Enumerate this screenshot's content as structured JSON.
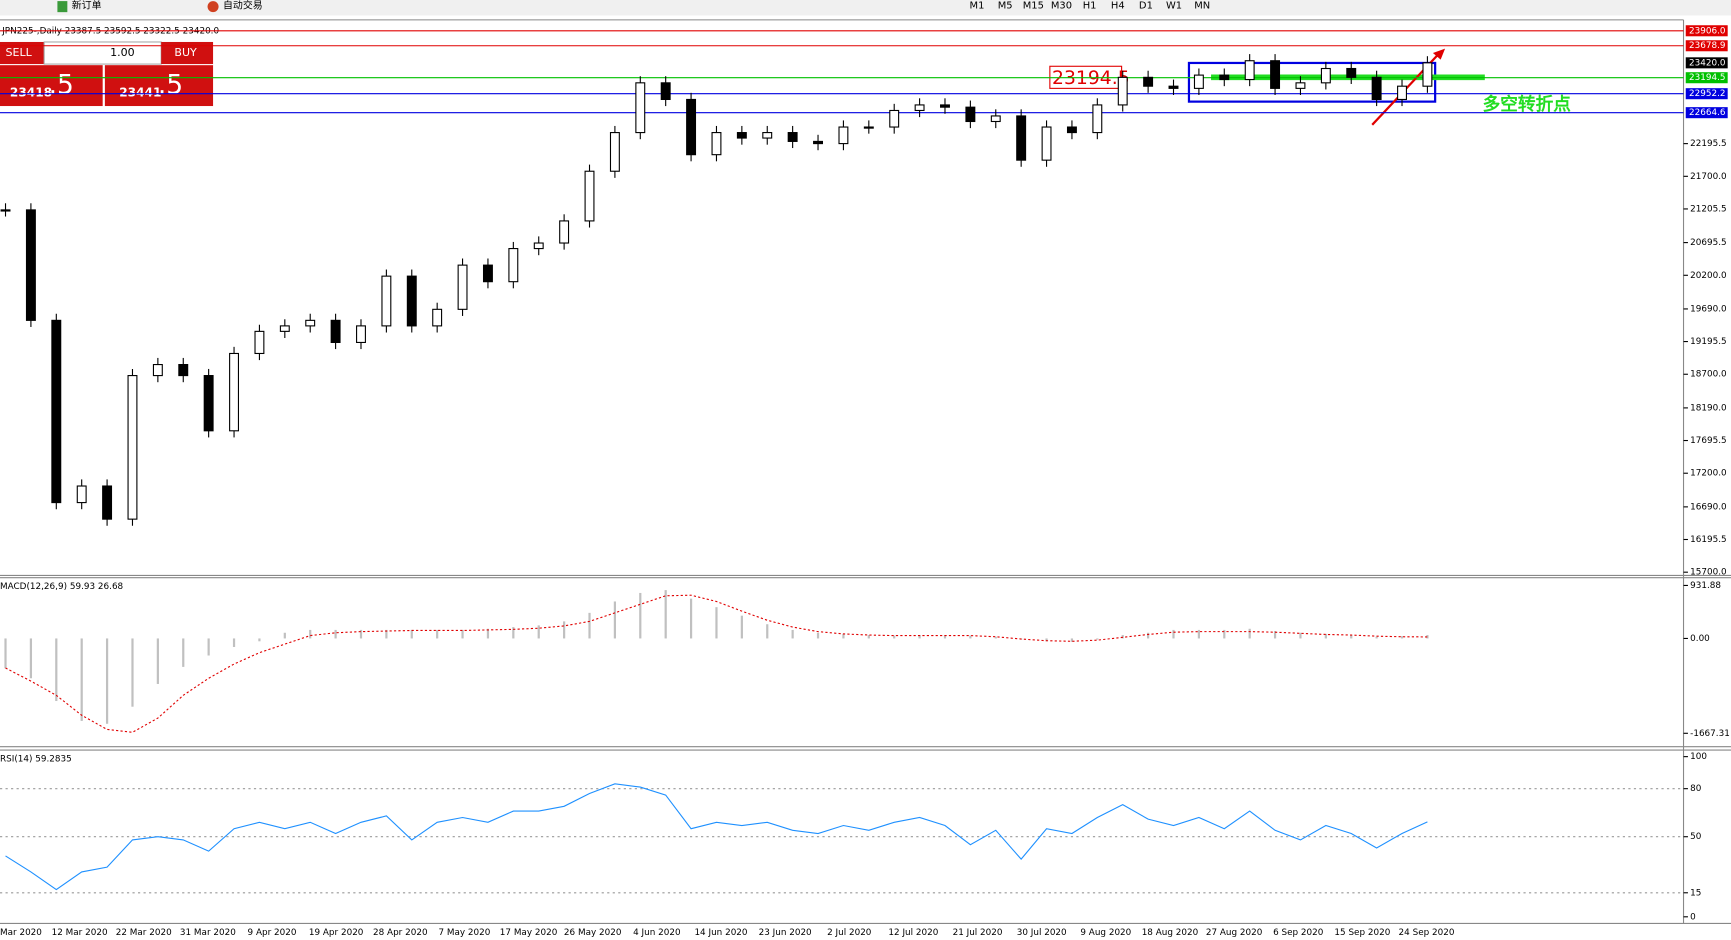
{
  "toolbar": {
    "new_order": "新订单",
    "auto_trading": "自动交易",
    "timeframes": [
      "M1",
      "M5",
      "M15",
      "M30",
      "H1",
      "H4",
      "D1",
      "W1",
      "MN"
    ]
  },
  "trade_panel": {
    "sell": "SELL",
    "buy": "BUY",
    "lot": "1.00",
    "sell_main": "23418",
    "sell_fraction": ".5",
    "buy_main": "23441",
    "buy_fraction": ".5"
  },
  "chart_data": [
    {
      "type": "candlestick",
      "title": "JPN225-,Daily  23387.5 23592.5 23322.5 23420.0",
      "closes": [
        21191,
        19517,
        16755,
        17006,
        16504,
        18680,
        18847,
        18680,
        17843,
        19015,
        19350,
        19433,
        19517,
        19182,
        19433,
        20187,
        19433,
        19684,
        20354,
        20103,
        20605,
        20689,
        21024,
        21777,
        22363,
        23117,
        22865,
        22028,
        22363,
        22280,
        22363,
        22229,
        22196,
        22447,
        22447,
        22698,
        22782,
        22748,
        22531,
        22615,
        21945,
        22447,
        22363,
        22782,
        23200,
        23066,
        23033,
        23234,
        23167,
        23452,
        23033,
        23117,
        23334,
        23200,
        22865,
        23066,
        23420
      ],
      "ylim": [
        15650,
        24071
      ],
      "yticks": [
        {
          "value": 22195.5,
          "label": "22195.5"
        },
        {
          "value": 21700,
          "label": "21700.0"
        },
        {
          "value": 21205.5,
          "label": "21205.5"
        },
        {
          "value": 20695.5,
          "label": "20695.5"
        },
        {
          "value": 20200,
          "label": "20200.0"
        },
        {
          "value": 19690,
          "label": "19690.0"
        },
        {
          "value": 19195.5,
          "label": "19195.5"
        },
        {
          "value": 18700,
          "label": "18700.0"
        },
        {
          "value": 18190,
          "label": "18190.0"
        },
        {
          "value": 17695.5,
          "label": "17695.5"
        },
        {
          "value": 17200,
          "label": "17200.0"
        },
        {
          "value": 16690,
          "label": "16690.0"
        },
        {
          "value": 16195.5,
          "label": "16195.5"
        },
        {
          "value": 15700,
          "label": "15700.0"
        }
      ],
      "price_levels": [
        {
          "value": 23906,
          "label": "23906.0",
          "color": "#e00000"
        },
        {
          "value": 23678.9,
          "label": "23678.9",
          "color": "#e00000"
        },
        {
          "value": 23420,
          "label": "23420.0",
          "color": "#000000"
        },
        {
          "value": 23194.5,
          "label": "23194.5",
          "color": "#00c000"
        },
        {
          "value": 22952.2,
          "label": "22952.2",
          "color": "#0000e0"
        },
        {
          "value": 22664.6,
          "label": "22664.6",
          "color": "#0000e0"
        }
      ],
      "marker_label": "23194.5",
      "annotation": "多空转折点"
    },
    {
      "type": "macd",
      "title": "MACD(12,26,9) 59.93 26.68",
      "series": [
        {
          "name": "MACD",
          "color": "#c0c0c0",
          "values": [
            -524,
            -700,
            -1100,
            -1450,
            -1500,
            -1200,
            -800,
            -500,
            -300,
            -150,
            -50,
            100,
            150,
            150,
            150,
            150,
            150,
            150,
            150,
            170,
            200,
            230,
            300,
            450,
            650,
            800,
            850,
            700,
            550,
            400,
            250,
            150,
            100,
            80,
            60,
            50,
            60,
            60,
            50,
            30,
            -20,
            -50,
            -60,
            -20,
            60,
            100,
            150,
            150,
            150,
            170,
            130,
            100,
            80,
            60,
            30,
            40,
            59.93
          ]
        },
        {
          "name": "Signal",
          "color": "#e00000",
          "values": [
            -520,
            -750,
            -1000,
            -1350,
            -1600,
            -1650,
            -1400,
            -1000,
            -700,
            -450,
            -250,
            -100,
            50,
            100,
            120,
            130,
            140,
            140,
            140,
            150,
            160,
            180,
            220,
            300,
            450,
            600,
            750,
            760,
            650,
            480,
            320,
            200,
            120,
            80,
            60,
            50,
            50,
            50,
            50,
            30,
            -10,
            -40,
            -50,
            -30,
            20,
            70,
            110,
            120,
            120,
            120,
            110,
            90,
            70,
            60,
            40,
            30,
            26.68
          ]
        }
      ],
      "ylim": [
        -1903,
        1068
      ],
      "yticks": [
        {
          "value": 931.88,
          "label": "931.88"
        },
        {
          "value": 0,
          "label": "0.00"
        },
        {
          "value": -1667.31,
          "label": "-1667.31"
        }
      ]
    },
    {
      "type": "line",
      "title": "RSI(14) 59.2835",
      "series": [
        {
          "name": "RSI",
          "color": "#1e90ff",
          "values": [
            38,
            28,
            17,
            28,
            31,
            48,
            50,
            48,
            41,
            55,
            59,
            55,
            59,
            52,
            59,
            63,
            48,
            59,
            62,
            59,
            66,
            66,
            69,
            77,
            83,
            81,
            76,
            55,
            59,
            57,
            59,
            54,
            52,
            57,
            54,
            59,
            62,
            57,
            45,
            54,
            36,
            55,
            52,
            62,
            70,
            61,
            57,
            62,
            55,
            66,
            54,
            48,
            57,
            52,
            43,
            52,
            59.28
          ]
        }
      ],
      "ylim": [
        0,
        100
      ],
      "yticks": [
        100,
        80,
        50,
        15,
        0
      ]
    }
  ],
  "date_labels": [
    "Mar 2020",
    "12 Mar 2020",
    "22 Mar 2020",
    "31 Mar 2020",
    "9 Apr 2020",
    "19 Apr 2020",
    "28 Apr 2020",
    "7 May 2020",
    "17 May 2020",
    "26 May 2020",
    "4 Jun 2020",
    "14 Jun 2020",
    "23 Jun 2020",
    "2 Jul 2020",
    "12 Jul 2020",
    "21 Jul 2020",
    "30 Jul 2020",
    "9 Aug 2020",
    "18 Aug 2020",
    "27 Aug 2020",
    "6 Sep 2020",
    "15 Sep 2020",
    "24 Sep 2020"
  ]
}
